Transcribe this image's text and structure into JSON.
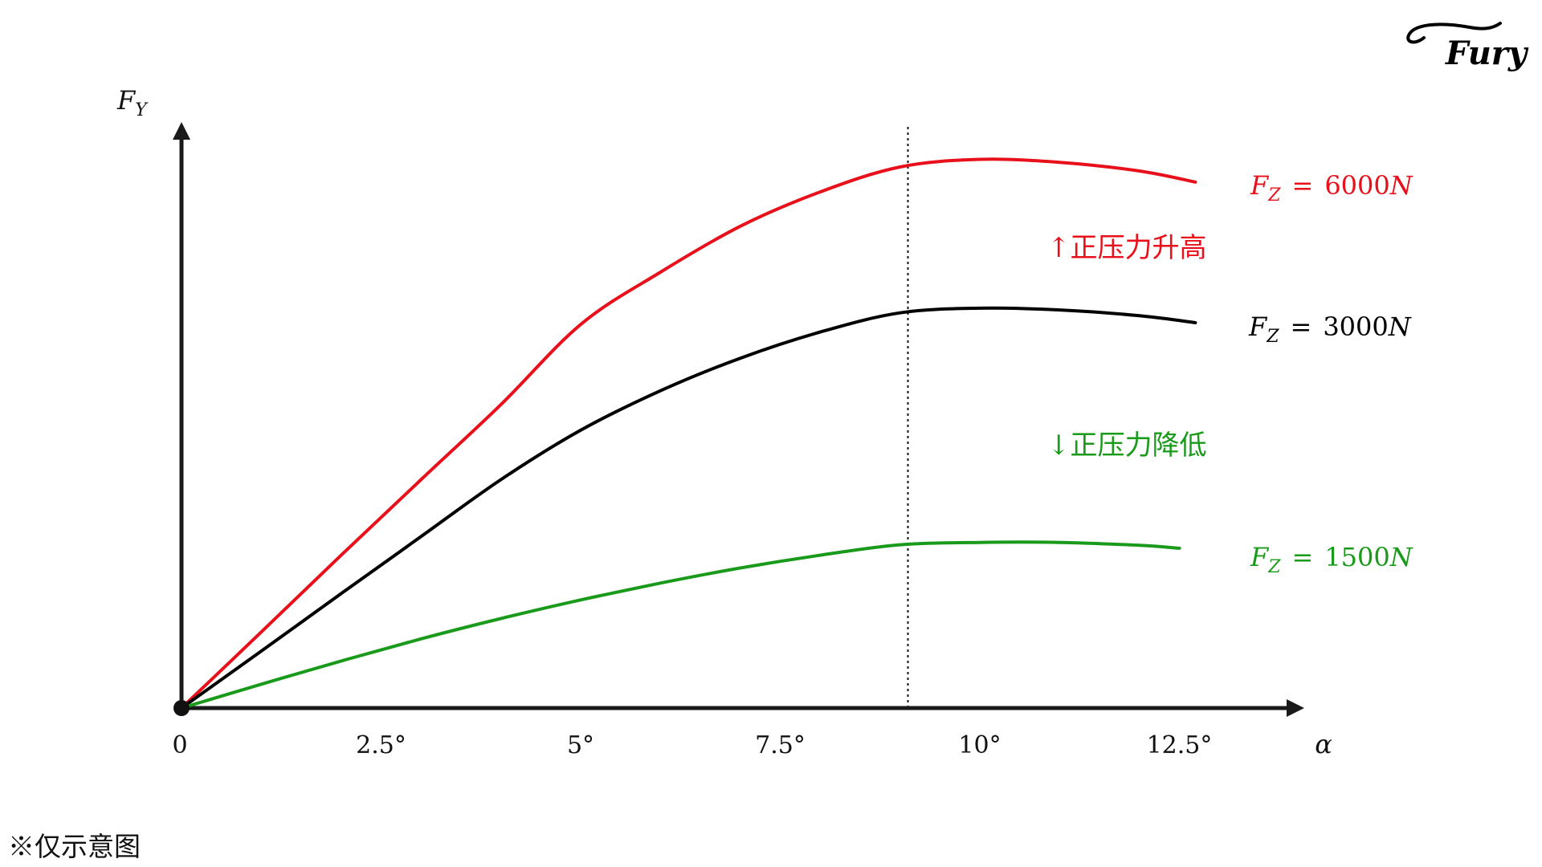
{
  "logo": {
    "text": "Fury"
  },
  "footnote": "※仅示意图",
  "annotations": {
    "increase": {
      "text": "↑正压力升高",
      "color": "#e8101a"
    },
    "decrease": {
      "text": "↓正压力降低",
      "color": "#1a9a1a"
    }
  },
  "chart_data": {
    "type": "line",
    "xlabel": "α",
    "ylabel": {
      "var": "F",
      "sub": "Y"
    },
    "xlim": [
      0,
      14
    ],
    "ylim": [
      0,
      100
    ],
    "x_ticks": [
      0,
      2.5,
      5,
      7.5,
      10,
      12.5
    ],
    "x_tick_labels": [
      "0",
      "2.5°",
      "5°",
      "7.5°",
      "10°",
      "12.5°"
    ],
    "y_ticks": [],
    "grid": false,
    "legend": "none",
    "reference_line": {
      "x": 9.1,
      "style": "dotted",
      "color": "#111111"
    },
    "series": [
      {
        "color": "#e8101a",
        "label": {
          "var": "F",
          "sub": "Z",
          "op": "=",
          "value": "6000",
          "unit": "N"
        },
        "x": [
          0,
          1,
          2,
          3,
          4,
          5,
          6,
          7,
          8,
          9,
          10,
          11,
          12,
          12.7
        ],
        "y": [
          0,
          13.1,
          26.3,
          39.3,
          52.2,
          66.0,
          75.0,
          82.9,
          88.8,
          93.1,
          94.4,
          93.9,
          92.4,
          90.5
        ]
      },
      {
        "color": "#000000",
        "label": {
          "var": "F",
          "sub": "Z",
          "op": "=",
          "value": "3000",
          "unit": "N"
        },
        "x": [
          0,
          1,
          2,
          3,
          4,
          5,
          6,
          7,
          8,
          9,
          10,
          11,
          12,
          12.7
        ],
        "y": [
          0,
          9.8,
          19.7,
          29.5,
          39.3,
          47.8,
          54.6,
          60.2,
          64.7,
          68.0,
          68.8,
          68.5,
          67.5,
          66.3
        ]
      },
      {
        "color": "#1a9a1a",
        "label": {
          "var": "F",
          "sub": "Z",
          "op": "=",
          "value": "1500",
          "unit": "N"
        },
        "x": [
          0,
          1,
          2,
          3,
          4,
          5,
          6,
          7,
          8,
          9,
          10,
          11,
          12,
          12.5
        ],
        "y": [
          0,
          4.1,
          8.1,
          11.9,
          15.4,
          18.6,
          21.5,
          24.1,
          26.3,
          28.1,
          28.5,
          28.5,
          28.0,
          27.5
        ]
      }
    ]
  }
}
